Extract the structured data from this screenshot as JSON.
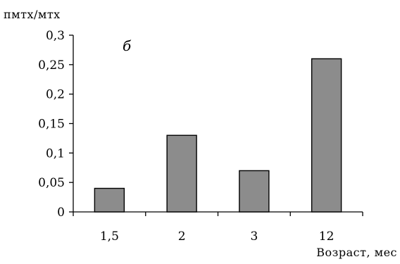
{
  "chart_data": {
    "type": "bar",
    "title": "",
    "panel_label": "б",
    "ylabel": "пмтх/мтх",
    "xlabel": "Возраст, мес",
    "categories": [
      "1,5",
      "2",
      "3",
      "12"
    ],
    "values": [
      0.04,
      0.13,
      0.07,
      0.26
    ],
    "ylim": [
      0,
      0.3
    ],
    "yticks": [
      0,
      0.05,
      0.1,
      0.15,
      0.2,
      0.25,
      0.3
    ],
    "ytick_labels": [
      "0",
      "0,05",
      "0,1",
      "0,15",
      "0,2",
      "0,25",
      "0,3"
    ],
    "grid": false,
    "legend": "none",
    "bar_color": "#8c8c8c",
    "bar_edge_color": "#000000"
  }
}
